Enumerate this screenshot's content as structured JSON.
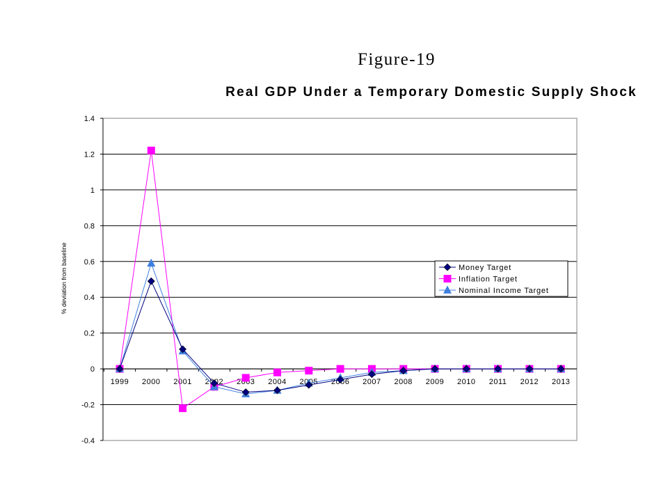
{
  "figure_label": "Figure-19",
  "chart_data": {
    "type": "line",
    "title": "Real GDP Under a Temporary Domestic  Supply Shock",
    "xlabel": "",
    "ylabel": "% deviation from baseline",
    "categories": [
      "1999",
      "2000",
      "2001",
      "2002",
      "2003",
      "2004",
      "2005",
      "2006",
      "2007",
      "2008",
      "2009",
      "2010",
      "2011",
      "2012",
      "2013"
    ],
    "ylim": [
      -0.4,
      1.4
    ],
    "yticks": [
      "1.4",
      "1.2",
      "1",
      "0.8",
      "0.6",
      "0.4",
      "0.2",
      "0",
      "-0.2",
      "-0.4"
    ],
    "ytick_values": [
      1.4,
      1.2,
      1,
      0.8,
      0.6,
      0.4,
      0.2,
      0,
      -0.2,
      -0.4
    ],
    "grid": true,
    "legend_position": "right",
    "series": [
      {
        "name": "Money Target",
        "color": "#000080",
        "marker": "diamond",
        "values": [
          0,
          0.49,
          0.11,
          -0.08,
          -0.13,
          -0.12,
          -0.09,
          -0.06,
          -0.03,
          -0.01,
          0,
          0,
          0,
          0,
          0
        ]
      },
      {
        "name": "Inflation Target",
        "color": "#ff00ff",
        "marker": "square",
        "values": [
          0,
          1.22,
          -0.22,
          -0.1,
          -0.05,
          -0.02,
          -0.01,
          0,
          0,
          0,
          0,
          0,
          0,
          0,
          0
        ]
      },
      {
        "name": "Nominal Income Target",
        "color": "#3f7fdf",
        "marker": "triangle",
        "values": [
          0,
          0.59,
          0.1,
          -0.1,
          -0.14,
          -0.12,
          -0.08,
          -0.05,
          -0.02,
          -0.01,
          0,
          0,
          0,
          0,
          0
        ]
      }
    ]
  }
}
